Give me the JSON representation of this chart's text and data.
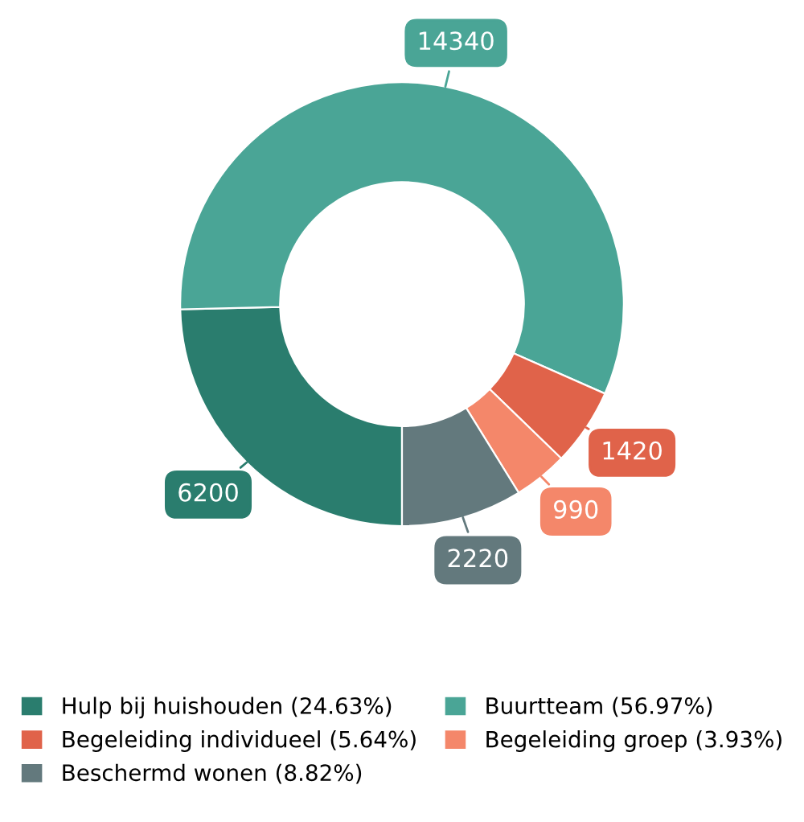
{
  "chart_data": {
    "type": "donut",
    "categories": [
      "Hulp bij huishouden (24.63%)",
      "Buurtteam (56.97%)",
      "Begeleiding individueel (5.64%)",
      "Begeleiding groep (3.93%)",
      "Beschermd wonen (8.82%)"
    ],
    "values": [
      6200,
      14340,
      1420,
      990,
      2220
    ],
    "colors": [
      "#2a7d6e",
      "#4aa596",
      "#e0634a",
      "#f4876a",
      "#63797d"
    ],
    "data_labels": true,
    "legend": "bottom"
  }
}
